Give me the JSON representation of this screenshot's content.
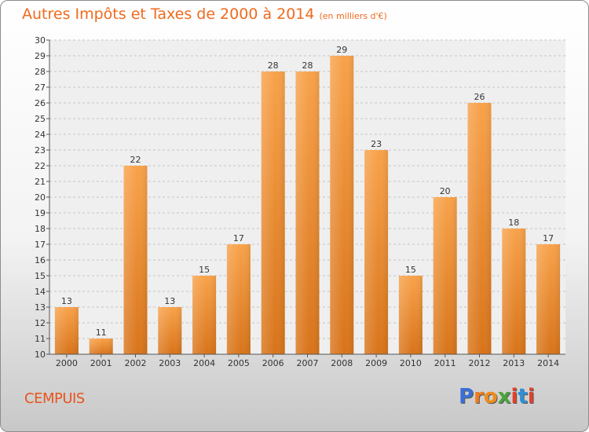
{
  "header": {
    "title": "Autres Impôts et Taxes de 2000 à 2014",
    "unit": "(en milliers d'€)"
  },
  "footer": {
    "town": "CEMPUIS",
    "brand": [
      "P",
      "r",
      "o",
      "x",
      "i",
      "t",
      "i"
    ]
  },
  "colors": {
    "title": "#f06a1e",
    "bar_top": "#f8a24a",
    "bar_bottom": "#d8741a",
    "brand": [
      "#3b6fd6",
      "#f07a1c",
      "#ef8b1a",
      "#49a33c",
      "#e0402a",
      "#2f8fd8",
      "#e0402a"
    ]
  },
  "chart_data": {
    "type": "bar",
    "categories": [
      "2000",
      "2001",
      "2002",
      "2003",
      "2004",
      "2005",
      "2006",
      "2007",
      "2008",
      "2009",
      "2010",
      "2011",
      "2012",
      "2013",
      "2014"
    ],
    "values": [
      13,
      11,
      22,
      13,
      15,
      17,
      28,
      28,
      29,
      23,
      15,
      20,
      26,
      18,
      17
    ],
    "ylim": [
      10,
      30
    ],
    "yticks": [
      10,
      11,
      12,
      13,
      14,
      15,
      16,
      17,
      18,
      19,
      20,
      21,
      22,
      23,
      24,
      25,
      26,
      27,
      28,
      29,
      30
    ],
    "grid": true,
    "legend": "none"
  }
}
